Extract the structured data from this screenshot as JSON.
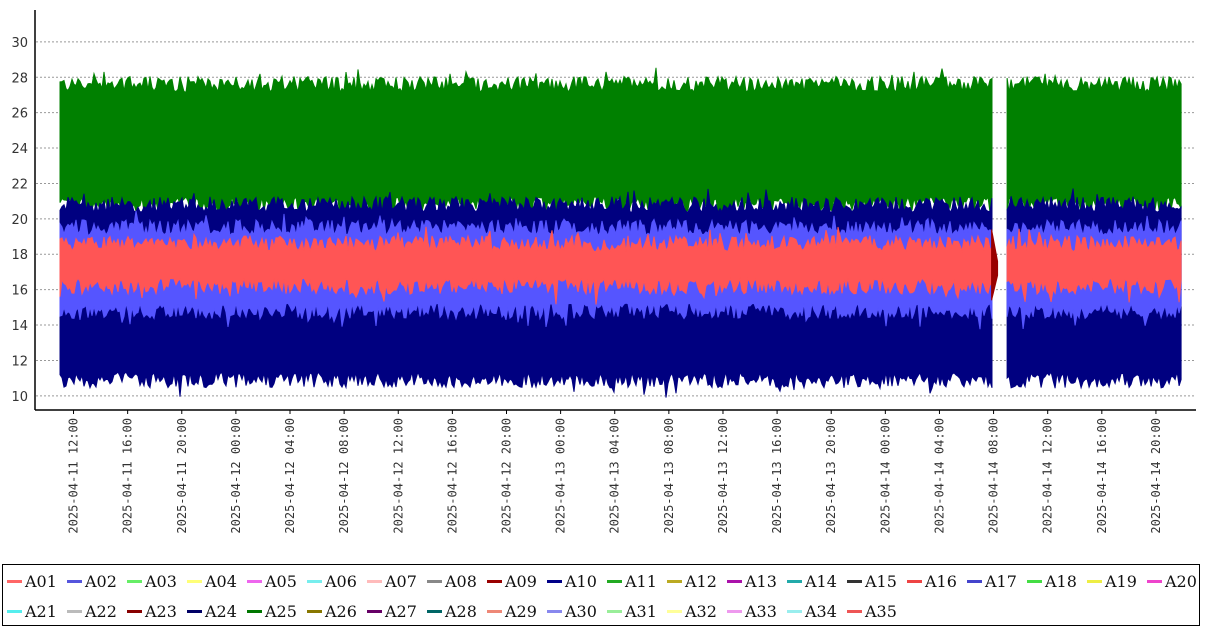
{
  "chart_data": {
    "type": "area",
    "title": "",
    "xlabel": "",
    "ylabel": "",
    "ylim": [
      9.2,
      31.8
    ],
    "y_ticks": [
      "10",
      "12",
      "14",
      "16",
      "18",
      "20",
      "22",
      "24",
      "26",
      "28",
      "30"
    ],
    "x_range": [
      "2025-04-11 11:00",
      "2025-04-14 22:00"
    ],
    "x_ticks": [
      "2025-04-11 12:00",
      "2025-04-11 16:00",
      "2025-04-11 20:00",
      "2025-04-12 00:00",
      "2025-04-12 04:00",
      "2025-04-12 08:00",
      "2025-04-12 12:00",
      "2025-04-12 16:00",
      "2025-04-12 20:00",
      "2025-04-13 00:00",
      "2025-04-13 04:00",
      "2025-04-13 08:00",
      "2025-04-13 12:00",
      "2025-04-13 16:00",
      "2025-04-13 20:00",
      "2025-04-14 00:00",
      "2025-04-14 04:00",
      "2025-04-14 08:00",
      "2025-04-14 12:00",
      "2025-04-14 16:00",
      "2025-04-14 20:00"
    ],
    "grid": "horizontal dotted",
    "legend_position": "bottom",
    "data_gaps": [
      {
        "start": "2025-04-14 08:00",
        "end": "2025-04-14 09:00"
      }
    ],
    "series": [
      {
        "name": "A01",
        "color": "#ff6666"
      },
      {
        "name": "A02",
        "color": "#5555dd"
      },
      {
        "name": "A03",
        "color": "#66ee66"
      },
      {
        "name": "A04",
        "color": "#ffff77"
      },
      {
        "name": "A05",
        "color": "#ee66ee"
      },
      {
        "name": "A06",
        "color": "#77eeee"
      },
      {
        "name": "A07",
        "color": "#ffbbbb"
      },
      {
        "name": "A08",
        "color": "#888888"
      },
      {
        "name": "A09",
        "color": "#990000"
      },
      {
        "name": "A10",
        "color": "#000088"
      },
      {
        "name": "A11",
        "color": "#22aa22"
      },
      {
        "name": "A12",
        "color": "#bbaa22"
      },
      {
        "name": "A13",
        "color": "#aa11aa"
      },
      {
        "name": "A14",
        "color": "#22aaaa"
      },
      {
        "name": "A15",
        "color": "#333333"
      },
      {
        "name": "A16",
        "color": "#ee4444"
      },
      {
        "name": "A17",
        "color": "#4444cc"
      },
      {
        "name": "A18",
        "color": "#44dd44"
      },
      {
        "name": "A19",
        "color": "#eeee44"
      },
      {
        "name": "A20",
        "color": "#ee44cc"
      },
      {
        "name": "A21",
        "color": "#55eeee"
      },
      {
        "name": "A22",
        "color": "#bbbbbb"
      },
      {
        "name": "A23",
        "color": "#880000"
      },
      {
        "name": "A24",
        "color": "#000066"
      },
      {
        "name": "A25",
        "color": "#007700"
      },
      {
        "name": "A26",
        "color": "#887700"
      },
      {
        "name": "A27",
        "color": "#660066"
      },
      {
        "name": "A28",
        "color": "#006666"
      },
      {
        "name": "A29",
        "color": "#ee8877"
      },
      {
        "name": "A30",
        "color": "#8888ee"
      },
      {
        "name": "A31",
        "color": "#99ee99"
      },
      {
        "name": "A32",
        "color": "#ffff99"
      },
      {
        "name": "A33",
        "color": "#ee99ee"
      },
      {
        "name": "A34",
        "color": "#99eeee"
      },
      {
        "name": "A35",
        "color": "#ee5555"
      }
    ],
    "bands": [
      {
        "series": "A25",
        "color": "#008000",
        "low": 20.8,
        "high": 27.6,
        "peak": 28.3
      },
      {
        "series": "A10",
        "color": "#000080",
        "low": 10.9,
        "high": 20.8
      },
      {
        "series": "A02",
        "color": "#5555ff",
        "low": 14.8,
        "high": 19.5
      },
      {
        "series": "A01",
        "color": "#ff5555",
        "low": 16.2,
        "high": 18.6
      }
    ]
  }
}
